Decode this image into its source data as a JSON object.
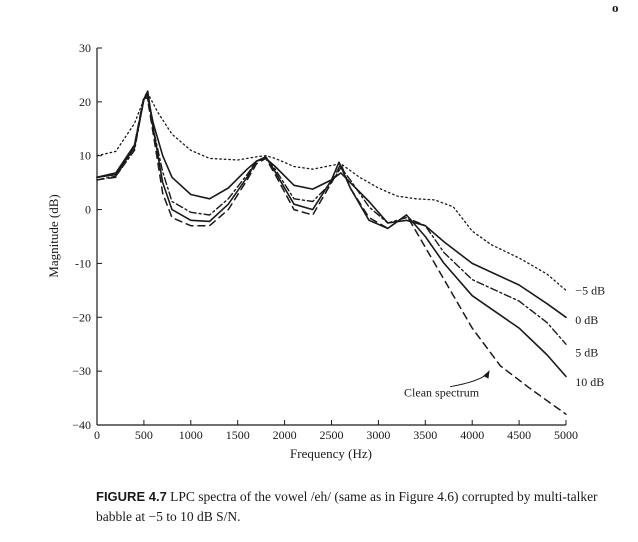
{
  "page": {
    "number": "o"
  },
  "caption": {
    "label": "FIGURE 4.7",
    "text": "LPC spectra of the vowel /eh/ (same as in Figure 4.6) corrupted by multi-talker babble at −5 to 10 dB S/N."
  },
  "chart_data": {
    "type": "line",
    "title": "",
    "xlabel": "Frequency (Hz)",
    "ylabel": "Magnitude (dB)",
    "xlim": [
      0,
      5000
    ],
    "ylim": [
      -40,
      30
    ],
    "xticks": [
      0,
      500,
      1000,
      1500,
      2000,
      2500,
      3000,
      3500,
      4000,
      4500,
      5000
    ],
    "yticks": [
      -40,
      -30,
      -20,
      -10,
      0,
      10,
      20,
      30
    ],
    "ytick_labels": [
      "−40",
      "−30",
      "−20",
      "-10",
      "0",
      "10",
      "20",
      "30"
    ],
    "grid": false,
    "legend": "labels at right end of curves",
    "series": [
      {
        "name": "−5 dB",
        "style": "dotted",
        "points": [
          [
            0,
            10
          ],
          [
            200,
            10.8
          ],
          [
            400,
            16
          ],
          [
            500,
            20.5
          ],
          [
            560,
            21
          ],
          [
            650,
            18
          ],
          [
            800,
            14
          ],
          [
            1000,
            11
          ],
          [
            1200,
            9.5
          ],
          [
            1500,
            9.2
          ],
          [
            1700,
            9.8
          ],
          [
            1800,
            10
          ],
          [
            1900,
            9.5
          ],
          [
            2100,
            8
          ],
          [
            2300,
            7.5
          ],
          [
            2500,
            8.2
          ],
          [
            2600,
            8.5
          ],
          [
            2800,
            6
          ],
          [
            3000,
            4
          ],
          [
            3200,
            2.5
          ],
          [
            3400,
            2
          ],
          [
            3600,
            1.8
          ],
          [
            3800,
            0.5
          ],
          [
            4000,
            -4
          ],
          [
            4200,
            -6.5
          ],
          [
            4500,
            -9
          ],
          [
            4800,
            -12
          ],
          [
            5000,
            -15
          ]
        ]
      },
      {
        "name": "0 dB",
        "style": "solid",
        "points": [
          [
            0,
            6
          ],
          [
            200,
            6.8
          ],
          [
            400,
            12
          ],
          [
            500,
            20.5
          ],
          [
            540,
            21
          ],
          [
            600,
            16
          ],
          [
            700,
            10
          ],
          [
            800,
            6
          ],
          [
            1000,
            2.8
          ],
          [
            1200,
            2
          ],
          [
            1400,
            4
          ],
          [
            1600,
            7.5
          ],
          [
            1700,
            9
          ],
          [
            1800,
            9.5
          ],
          [
            1900,
            8
          ],
          [
            2100,
            4.5
          ],
          [
            2300,
            3.8
          ],
          [
            2500,
            5.5
          ],
          [
            2600,
            6.8
          ],
          [
            2700,
            5
          ],
          [
            2900,
            1.5
          ],
          [
            3100,
            -2.5
          ],
          [
            3300,
            -2
          ],
          [
            3500,
            -3
          ],
          [
            3700,
            -6
          ],
          [
            4000,
            -10
          ],
          [
            4500,
            -14
          ],
          [
            4800,
            -17.5
          ],
          [
            5000,
            -20
          ]
        ]
      },
      {
        "name": "5 dB",
        "style": "dashdot",
        "points": [
          [
            0,
            5.5
          ],
          [
            200,
            6.2
          ],
          [
            400,
            11
          ],
          [
            500,
            20.5
          ],
          [
            530,
            21.5
          ],
          [
            600,
            15
          ],
          [
            700,
            7
          ],
          [
            800,
            1.5
          ],
          [
            1000,
            -0.5
          ],
          [
            1200,
            -1
          ],
          [
            1400,
            2
          ],
          [
            1600,
            6.5
          ],
          [
            1700,
            9
          ],
          [
            1800,
            9.5
          ],
          [
            1900,
            7.5
          ],
          [
            2100,
            2
          ],
          [
            2300,
            1.5
          ],
          [
            2500,
            5
          ],
          [
            2600,
            7.8
          ],
          [
            2700,
            5.5
          ],
          [
            2900,
            0.5
          ],
          [
            3100,
            -2.5
          ],
          [
            3300,
            -1.5
          ],
          [
            3500,
            -3
          ],
          [
            3700,
            -8
          ],
          [
            4000,
            -13
          ],
          [
            4500,
            -17
          ],
          [
            4800,
            -21
          ],
          [
            5000,
            -25
          ]
        ]
      },
      {
        "name": "10 dB",
        "style": "solid",
        "points": [
          [
            0,
            6
          ],
          [
            200,
            6.5
          ],
          [
            400,
            11.5
          ],
          [
            500,
            20.5
          ],
          [
            540,
            22
          ],
          [
            600,
            15
          ],
          [
            700,
            5
          ],
          [
            800,
            0
          ],
          [
            1000,
            -2
          ],
          [
            1200,
            -2.2
          ],
          [
            1400,
            1
          ],
          [
            1600,
            6
          ],
          [
            1700,
            9
          ],
          [
            1800,
            9.8
          ],
          [
            1900,
            7
          ],
          [
            2100,
            1
          ],
          [
            2300,
            0
          ],
          [
            2500,
            5.5
          ],
          [
            2580,
            8.8
          ],
          [
            2700,
            4
          ],
          [
            2900,
            -2
          ],
          [
            3100,
            -3.5
          ],
          [
            3300,
            -1
          ],
          [
            3500,
            -5
          ],
          [
            3700,
            -10
          ],
          [
            4000,
            -16
          ],
          [
            4500,
            -22
          ],
          [
            4800,
            -27
          ],
          [
            5000,
            -31
          ]
        ]
      },
      {
        "name": "Clean spectrum",
        "style": "dashed",
        "points": [
          [
            0,
            5.5
          ],
          [
            200,
            6
          ],
          [
            400,
            12
          ],
          [
            500,
            21
          ],
          [
            530,
            21.5
          ],
          [
            600,
            14
          ],
          [
            700,
            3
          ],
          [
            800,
            -1.5
          ],
          [
            1000,
            -3
          ],
          [
            1200,
            -3
          ],
          [
            1400,
            0
          ],
          [
            1600,
            5.5
          ],
          [
            1700,
            8.5
          ],
          [
            1800,
            9.5
          ],
          [
            1900,
            6.5
          ],
          [
            2100,
            0
          ],
          [
            2300,
            -1
          ],
          [
            2500,
            5
          ],
          [
            2600,
            8.5
          ],
          [
            2700,
            4
          ],
          [
            2900,
            -1.5
          ],
          [
            3100,
            -3.5
          ],
          [
            3300,
            -1
          ],
          [
            3500,
            -7
          ],
          [
            3700,
            -13
          ],
          [
            4000,
            -22
          ],
          [
            4300,
            -29
          ],
          [
            4600,
            -33
          ],
          [
            4800,
            -35.5
          ],
          [
            5000,
            -38
          ]
        ]
      }
    ],
    "series_labels": [
      {
        "text": "−5 dB",
        "x": 4950,
        "y": -15
      },
      {
        "text": "0 dB",
        "x": 4950,
        "y": -20.5
      },
      {
        "text": "5 dB",
        "x": 4950,
        "y": -26.5
      },
      {
        "text": "10 dB",
        "x": 4950,
        "y": -32
      }
    ],
    "annotation": {
      "text": "Clean spectrum",
      "x": 3700,
      "y": -34,
      "arrow_to": [
        4180,
        -30
      ]
    }
  }
}
